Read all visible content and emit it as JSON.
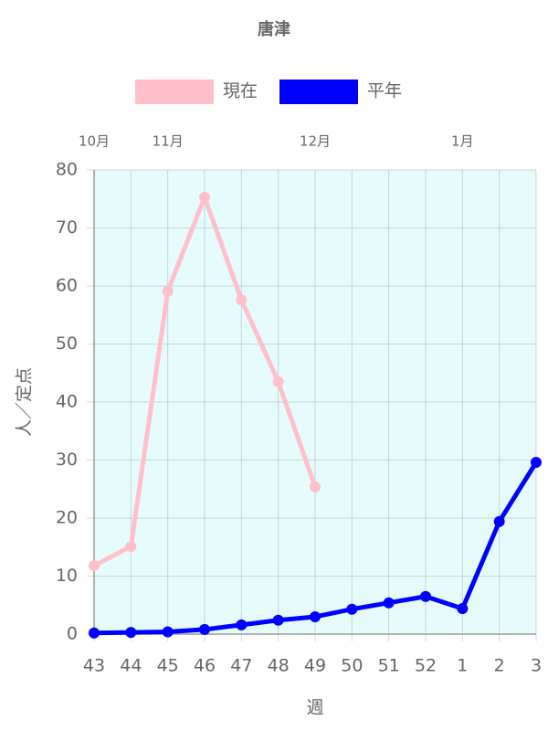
{
  "chart_data": {
    "type": "line",
    "title": "唐津",
    "x_label": "週",
    "y_label": "人／定点",
    "categories": [
      "43",
      "44",
      "45",
      "46",
      "47",
      "48",
      "49",
      "50",
      "51",
      "52",
      "1",
      "2",
      "3"
    ],
    "top_categories": [
      "10月",
      null,
      "11月",
      null,
      null,
      null,
      "12月",
      null,
      null,
      null,
      "1月",
      null,
      null
    ],
    "series": [
      {
        "name": "現在",
        "color": "#ffc0cb",
        "values": [
          11.8,
          15.1,
          59.1,
          75.3,
          57.6,
          43.5,
          25.4,
          null,
          null,
          null,
          null,
          null,
          null
        ]
      },
      {
        "name": "平年",
        "color": "#0000ff",
        "values": [
          0.2,
          0.3,
          0.4,
          0.8,
          1.6,
          2.4,
          3.0,
          4.3,
          5.4,
          6.5,
          4.4,
          19.4,
          29.6
        ]
      }
    ],
    "ylim": [
      0,
      80
    ],
    "yticks": [
      0,
      10,
      20,
      30,
      40,
      50,
      60,
      70,
      80
    ],
    "grid": true,
    "legend": "top",
    "background": "#e6fcfc"
  }
}
